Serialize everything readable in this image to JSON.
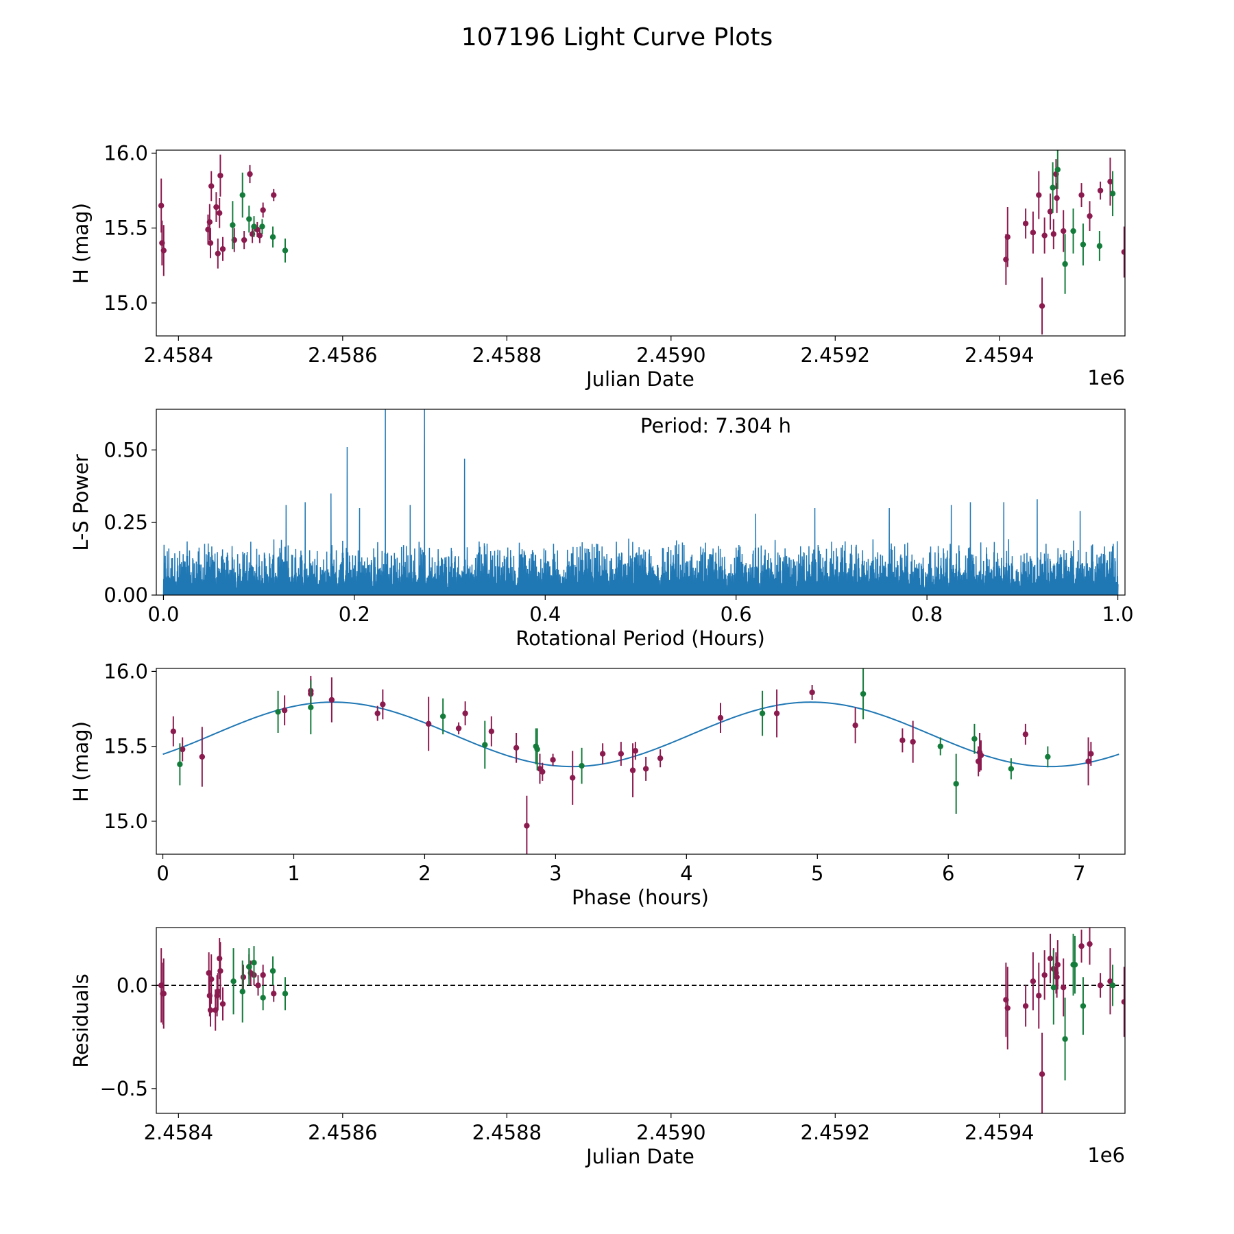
{
  "figure": {
    "title": "107196 Light Curve Plots",
    "colors": {
      "series_a": "#8b1a4f",
      "series_b": "#137c3a",
      "curve": "#1f77b4",
      "axis": "#000000"
    }
  },
  "chart_data": [
    {
      "type": "scatter",
      "id": "lightcurve",
      "title": "",
      "xlabel": "Julian Date",
      "ylabel": "H (mag)",
      "offset_label": "1e6",
      "xlim": [
        2458373,
        2459553
      ],
      "ylim": [
        14.78,
        16.02
      ],
      "xticks": [
        2458400,
        2458600,
        2458800,
        2459000,
        2459200,
        2459400
      ],
      "xtick_labels": [
        "2.4584",
        "2.4586",
        "2.4588",
        "2.4590",
        "2.4592",
        "2.4594"
      ],
      "yticks": [
        15.0,
        15.5,
        16.0
      ],
      "ytick_labels": [
        "15.0",
        "15.5",
        "16.0"
      ],
      "series": [
        {
          "name": "band-1",
          "color": "#8b1a4f",
          "points": [
            [
              2458379,
              15.65,
              0.18
            ],
            [
              2458380,
              15.4,
              0.15
            ],
            [
              2458382,
              15.35,
              0.17
            ],
            [
              2458436,
              15.49,
              0.1
            ],
            [
              2458438,
              15.54,
              0.12
            ],
            [
              2458440,
              15.78,
              0.1
            ],
            [
              2458439,
              15.4,
              0.1
            ],
            [
              2458446,
              15.64,
              0.1
            ],
            [
              2458448,
              15.33,
              0.1
            ],
            [
              2458450,
              15.6,
              0.1
            ],
            [
              2458451,
              15.85,
              0.14
            ],
            [
              2458454,
              15.36,
              0.08
            ],
            [
              2458468,
              15.42,
              0.08
            ],
            [
              2458480,
              15.42,
              0.06
            ],
            [
              2458487,
              15.86,
              0.06
            ],
            [
              2458490,
              15.46,
              0.06
            ],
            [
              2458496,
              15.49,
              0.05
            ],
            [
              2458499,
              15.45,
              0.05
            ],
            [
              2458503,
              15.62,
              0.05
            ],
            [
              2458516,
              15.72,
              0.04
            ],
            [
              2459408,
              15.29,
              0.17
            ],
            [
              2459410,
              15.44,
              0.2
            ],
            [
              2459432,
              15.53,
              0.1
            ],
            [
              2459441,
              15.47,
              0.14
            ],
            [
              2459448,
              15.72,
              0.16
            ],
            [
              2459452,
              14.98,
              0.19
            ],
            [
              2459455,
              15.45,
              0.12
            ],
            [
              2459462,
              15.61,
              0.12
            ],
            [
              2459466,
              15.46,
              0.1
            ],
            [
              2459469,
              15.86,
              0.1
            ],
            [
              2459470,
              15.7,
              0.1
            ],
            [
              2459478,
              15.48,
              0.14
            ],
            [
              2459500,
              15.72,
              0.08
            ],
            [
              2459510,
              15.58,
              0.1
            ],
            [
              2459523,
              15.75,
              0.06
            ],
            [
              2459535,
              15.81,
              0.16
            ],
            [
              2459552,
              15.34,
              0.17
            ]
          ]
        },
        {
          "name": "band-2",
          "color": "#137c3a",
          "points": [
            [
              2458466,
              15.52,
              0.16
            ],
            [
              2458478,
              15.72,
              0.15
            ],
            [
              2458486,
              15.56,
              0.09
            ],
            [
              2458492,
              15.51,
              0.07
            ],
            [
              2458502,
              15.51,
              0.05
            ],
            [
              2458515,
              15.44,
              0.07
            ],
            [
              2458530,
              15.35,
              0.08
            ],
            [
              2459465,
              15.77,
              0.17
            ],
            [
              2459471,
              15.89,
              0.13
            ],
            [
              2459480,
              15.26,
              0.2
            ],
            [
              2459490,
              15.48,
              0.15
            ],
            [
              2459502,
              15.39,
              0.14
            ],
            [
              2459522,
              15.38,
              0.1
            ],
            [
              2459538,
              15.73,
              0.15
            ]
          ]
        }
      ]
    },
    {
      "type": "line",
      "id": "periodogram",
      "title": "",
      "xlabel": "Rotational Period (Hours)",
      "ylabel": "L-S Power",
      "annotation": "Period: 7.304 h",
      "xlim": [
        -0.0075,
        1.0075
      ],
      "ylim": [
        0,
        0.64
      ],
      "xticks": [
        0,
        0.2,
        0.4,
        0.6,
        0.8,
        1.0
      ],
      "xtick_labels": [
        "0.0",
        "0.2",
        "0.4",
        "0.6",
        "0.8",
        "1.0"
      ],
      "yticks": [
        0,
        0.25,
        0.5
      ],
      "ytick_labels": [
        "0.00",
        "0.25",
        "0.50"
      ],
      "x_range": [
        0.0,
        1.0
      ],
      "n_samples": 2400,
      "base_level": 0.07,
      "noise_amplitude": 0.13,
      "peaks": [
        {
          "x": 0.192,
          "y": 0.51
        },
        {
          "x": 0.232,
          "y": 0.64
        },
        {
          "x": 0.273,
          "y": 0.64
        },
        {
          "x": 0.315,
          "y": 0.47
        },
        {
          "x": 0.175,
          "y": 0.35
        },
        {
          "x": 0.128,
          "y": 0.31
        },
        {
          "x": 0.148,
          "y": 0.32
        },
        {
          "x": 0.205,
          "y": 0.3
        },
        {
          "x": 0.258,
          "y": 0.31
        },
        {
          "x": 0.682,
          "y": 0.3
        },
        {
          "x": 0.845,
          "y": 0.32
        },
        {
          "x": 0.88,
          "y": 0.32
        },
        {
          "x": 0.915,
          "y": 0.33
        },
        {
          "x": 0.825,
          "y": 0.31
        },
        {
          "x": 0.76,
          "y": 0.3
        },
        {
          "x": 0.62,
          "y": 0.28
        },
        {
          "x": 0.96,
          "y": 0.29
        }
      ]
    },
    {
      "type": "scatter",
      "id": "phasefold",
      "title": "",
      "xlabel": "Phase (hours)",
      "ylabel": "H (mag)",
      "xlim": [
        -0.05,
        7.35
      ],
      "ylim": [
        14.78,
        16.02
      ],
      "xticks": [
        0,
        1,
        2,
        3,
        4,
        5,
        6,
        7
      ],
      "xtick_labels": [
        "0",
        "1",
        "2",
        "3",
        "4",
        "5",
        "6",
        "7"
      ],
      "yticks": [
        15.0,
        15.5,
        16.0
      ],
      "ytick_labels": [
        "15.0",
        "15.5",
        "16.0"
      ],
      "model": {
        "color": "#1f77b4",
        "mean": 15.58,
        "amplitude": 0.215,
        "period": 3.652,
        "phase_shift": 1.3,
        "x_range": [
          0,
          7.304
        ]
      },
      "series": [
        {
          "name": "band-1",
          "color": "#8b1a4f",
          "points": [
            [
              0.08,
              15.6,
              0.1
            ],
            [
              0.15,
              15.48,
              0.08
            ],
            [
              0.3,
              15.43,
              0.2
            ],
            [
              0.93,
              15.74,
              0.1
            ],
            [
              1.13,
              15.85,
              0.1
            ],
            [
              1.13,
              15.87,
              0.1
            ],
            [
              1.29,
              15.81,
              0.15
            ],
            [
              1.64,
              15.72,
              0.05
            ],
            [
              1.68,
              15.78,
              0.1
            ],
            [
              2.03,
              15.65,
              0.18
            ],
            [
              2.26,
              15.62,
              0.04
            ],
            [
              2.31,
              15.72,
              0.08
            ],
            [
              2.51,
              15.6,
              0.1
            ],
            [
              2.7,
              15.49,
              0.1
            ],
            [
              2.78,
              14.97,
              0.2
            ],
            [
              2.88,
              15.35,
              0.1
            ],
            [
              2.9,
              15.33,
              0.06
            ],
            [
              2.98,
              15.41,
              0.04
            ],
            [
              3.13,
              15.29,
              0.18
            ],
            [
              3.36,
              15.45,
              0.07
            ],
            [
              3.5,
              15.45,
              0.08
            ],
            [
              3.59,
              15.34,
              0.18
            ],
            [
              3.61,
              15.47,
              0.06
            ],
            [
              3.69,
              15.35,
              0.08
            ],
            [
              3.8,
              15.42,
              0.06
            ],
            [
              4.26,
              15.69,
              0.1
            ],
            [
              4.69,
              15.72,
              0.16
            ],
            [
              4.96,
              15.86,
              0.05
            ],
            [
              5.29,
              15.64,
              0.12
            ],
            [
              5.65,
              15.54,
              0.08
            ],
            [
              5.73,
              15.53,
              0.14
            ],
            [
              6.23,
              15.4,
              0.1
            ],
            [
              6.24,
              15.46,
              0.13
            ],
            [
              6.25,
              15.44,
              0.1
            ],
            [
              6.59,
              15.58,
              0.07
            ],
            [
              7.07,
              15.4,
              0.16
            ],
            [
              7.09,
              15.45,
              0.08
            ]
          ]
        },
        {
          "name": "band-2",
          "color": "#137c3a",
          "points": [
            [
              0.13,
              15.38,
              0.14
            ],
            [
              0.88,
              15.73,
              0.14
            ],
            [
              1.13,
              15.76,
              0.18
            ],
            [
              2.14,
              15.7,
              0.12
            ],
            [
              2.46,
              15.51,
              0.16
            ],
            [
              2.85,
              15.5,
              0.12
            ],
            [
              2.86,
              15.48,
              0.14
            ],
            [
              3.2,
              15.37,
              0.12
            ],
            [
              4.58,
              15.72,
              0.15
            ],
            [
              5.35,
              15.85,
              0.17
            ],
            [
              5.94,
              15.5,
              0.06
            ],
            [
              6.06,
              15.25,
              0.2
            ],
            [
              6.2,
              15.55,
              0.1
            ],
            [
              6.48,
              15.35,
              0.07
            ],
            [
              6.76,
              15.43,
              0.07
            ]
          ]
        }
      ]
    },
    {
      "type": "scatter",
      "id": "residuals",
      "title": "",
      "xlabel": "Julian Date",
      "ylabel": "Residuals",
      "offset_label": "1e6",
      "xlim": [
        2458373,
        2459553
      ],
      "ylim": [
        -0.62,
        0.28
      ],
      "xticks": [
        2458400,
        2458600,
        2458800,
        2459000,
        2459200,
        2459400
      ],
      "xtick_labels": [
        "2.4584",
        "2.4586",
        "2.4588",
        "2.4590",
        "2.4592",
        "2.4594"
      ],
      "yticks": [
        -0.5,
        0.0
      ],
      "ytick_labels": [
        "−0.5",
        "0.0"
      ],
      "reference_line": {
        "y": 0.0,
        "style": "dashed"
      },
      "series": [
        {
          "name": "band-1",
          "color": "#8b1a4f",
          "points": [
            [
              2458379,
              0.0,
              0.18
            ],
            [
              2458381,
              -0.04,
              0.15
            ],
            [
              2458382,
              -0.04,
              0.17
            ],
            [
              2458437,
              0.06,
              0.1
            ],
            [
              2458438,
              -0.05,
              0.1
            ],
            [
              2458439,
              -0.12,
              0.08
            ],
            [
              2458440,
              0.03,
              0.12
            ],
            [
              2458445,
              -0.12,
              0.1
            ],
            [
              2458447,
              -0.05,
              0.1
            ],
            [
              2458448,
              -0.03,
              0.09
            ],
            [
              2458450,
              0.13,
              0.1
            ],
            [
              2458451,
              0.07,
              0.14
            ],
            [
              2458454,
              -0.09,
              0.08
            ],
            [
              2458479,
              0.04,
              0.06
            ],
            [
              2458486,
              0.09,
              0.06
            ],
            [
              2458488,
              0.06,
              0.06
            ],
            [
              2458492,
              0.05,
              0.05
            ],
            [
              2458497,
              0.0,
              0.05
            ],
            [
              2458503,
              0.05,
              0.05
            ],
            [
              2458516,
              -0.04,
              0.04
            ],
            [
              2459408,
              -0.07,
              0.18
            ],
            [
              2459410,
              -0.11,
              0.2
            ],
            [
              2459432,
              -0.1,
              0.1
            ],
            [
              2459441,
              0.02,
              0.14
            ],
            [
              2459448,
              -0.05,
              0.16
            ],
            [
              2459452,
              -0.43,
              0.2
            ],
            [
              2459455,
              0.05,
              0.12
            ],
            [
              2459462,
              0.13,
              0.12
            ],
            [
              2459466,
              0.08,
              0.1
            ],
            [
              2459469,
              0.06,
              0.1
            ],
            [
              2459470,
              0.04,
              0.1
            ],
            [
              2459471,
              0.1,
              0.12
            ],
            [
              2459478,
              -0.01,
              0.14
            ],
            [
              2459500,
              0.19,
              0.08
            ],
            [
              2459510,
              0.2,
              0.1
            ],
            [
              2459523,
              0.0,
              0.06
            ],
            [
              2459535,
              0.02,
              0.16
            ],
            [
              2459552,
              -0.08,
              0.17
            ]
          ]
        },
        {
          "name": "band-2",
          "color": "#137c3a",
          "points": [
            [
              2458467,
              0.02,
              0.16
            ],
            [
              2458478,
              -0.03,
              0.15
            ],
            [
              2458486,
              0.09,
              0.09
            ],
            [
              2458492,
              0.11,
              0.08
            ],
            [
              2458503,
              -0.06,
              0.06
            ],
            [
              2458515,
              0.07,
              0.07
            ],
            [
              2458530,
              -0.04,
              0.08
            ],
            [
              2459466,
              -0.01,
              0.18
            ],
            [
              2459480,
              -0.26,
              0.2
            ],
            [
              2459490,
              0.1,
              0.15
            ],
            [
              2459492,
              0.1,
              0.14
            ],
            [
              2459502,
              -0.1,
              0.14
            ],
            [
              2459538,
              0.0,
              0.1
            ]
          ]
        }
      ]
    }
  ]
}
